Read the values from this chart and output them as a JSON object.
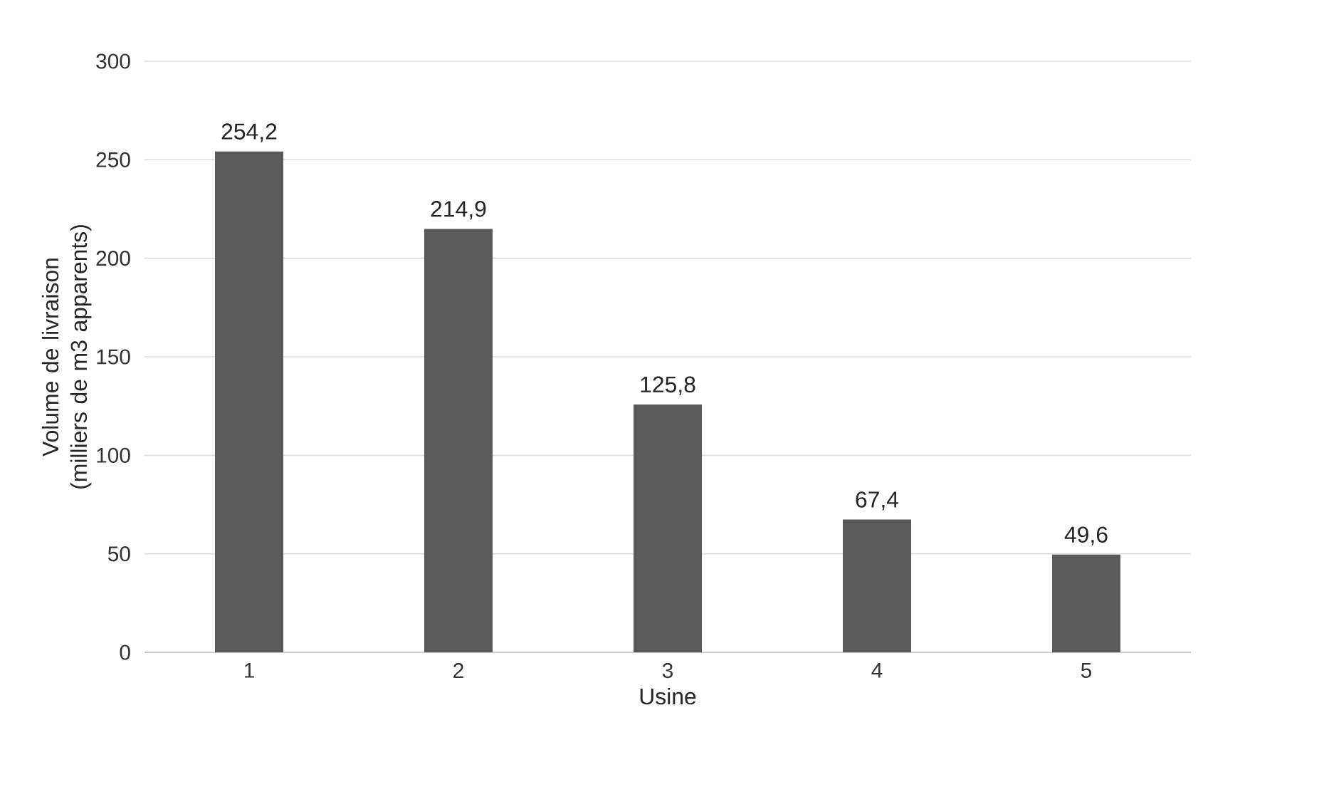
{
  "chart_data": {
    "type": "bar",
    "xlabel": "Usine",
    "ylabel": "Volume de livraison (milliers de m3 apparents)",
    "categories": [
      "1",
      "2",
      "3",
      "4",
      "5"
    ],
    "values": [
      254.2,
      214.9,
      125.8,
      67.4,
      49.6
    ],
    "value_labels": [
      "254,2",
      "214,9",
      "125,8",
      "67,4",
      "49,6"
    ],
    "color": "#595959",
    "ylim": [
      0,
      300
    ],
    "yticks": [
      0,
      50,
      100,
      150,
      200,
      250,
      300
    ],
    "grid": "y"
  }
}
